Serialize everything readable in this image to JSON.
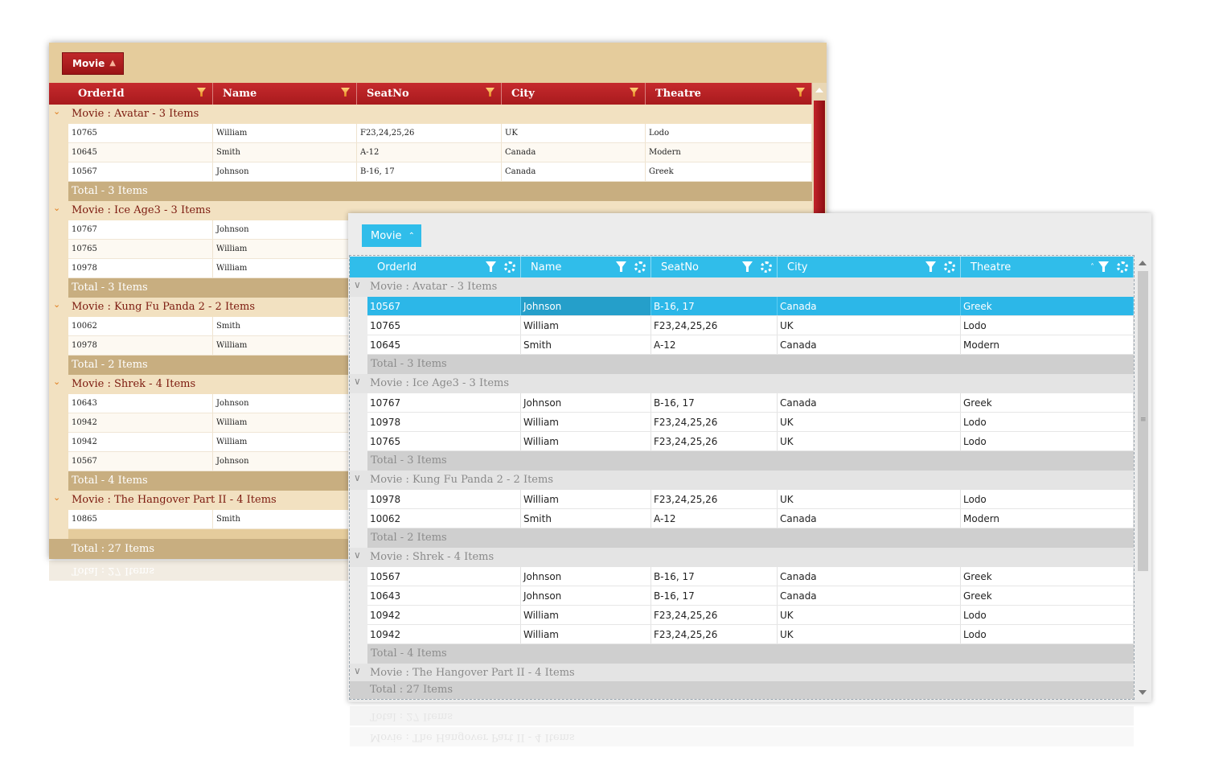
{
  "back_grid": {
    "group_chip": "Movie",
    "columns": [
      "OrderId",
      "Name",
      "SeatNo",
      "City",
      "Theatre"
    ],
    "groups": [
      {
        "label": "Movie : Avatar - 3 Items",
        "total": "Total - 3 Items",
        "rows": [
          [
            "10765",
            "William",
            "F23,24,25,26",
            "UK",
            "Lodo"
          ],
          [
            "10645",
            "Smith",
            "A-12",
            "Canada",
            "Modern"
          ],
          [
            "10567",
            "Johnson",
            "B-16, 17",
            "Canada",
            "Greek"
          ]
        ]
      },
      {
        "label": "Movie : Ice Age3 - 3 Items",
        "total": "Total - 3 Items",
        "rows": [
          [
            "10767",
            "Johnson",
            "",
            "",
            ""
          ],
          [
            "10765",
            "William",
            "",
            "",
            ""
          ],
          [
            "10978",
            "William",
            "",
            "",
            ""
          ]
        ]
      },
      {
        "label": "Movie : Kung Fu Panda 2 - 2 Items",
        "total": "Total - 2 Items",
        "rows": [
          [
            "10062",
            "Smith",
            "",
            "",
            ""
          ],
          [
            "10978",
            "William",
            "",
            "",
            ""
          ]
        ]
      },
      {
        "label": "Movie : Shrek - 4 Items",
        "total": "Total - 4 Items",
        "rows": [
          [
            "10643",
            "Johnson",
            "",
            "",
            ""
          ],
          [
            "10942",
            "William",
            "",
            "",
            ""
          ],
          [
            "10942",
            "William",
            "",
            "",
            ""
          ],
          [
            "10567",
            "Johnson",
            "",
            "",
            ""
          ]
        ]
      },
      {
        "label": "Movie : The Hangover Part II - 4 Items",
        "total": "",
        "rows": [
          [
            "10865",
            "Smith",
            "",
            "",
            ""
          ]
        ]
      }
    ],
    "grand_total": "Total : 27 Items"
  },
  "front_grid": {
    "group_chip": "Movie",
    "columns": [
      "OrderId",
      "Name",
      "SeatNo",
      "City",
      "Theatre"
    ],
    "selected_row": {
      "group": 0,
      "row": 0
    },
    "groups": [
      {
        "label": "Movie : Avatar - 3 Items",
        "total": "Total - 3 Items",
        "rows": [
          [
            "10567",
            "Johnson",
            "B-16, 17",
            "Canada",
            "Greek"
          ],
          [
            "10765",
            "William",
            "F23,24,25,26",
            "UK",
            "Lodo"
          ],
          [
            "10645",
            "Smith",
            "A-12",
            "Canada",
            "Modern"
          ]
        ]
      },
      {
        "label": "Movie : Ice Age3 - 3 Items",
        "total": "Total - 3 Items",
        "rows": [
          [
            "10767",
            "Johnson",
            "B-16, 17",
            "Canada",
            "Greek"
          ],
          [
            "10978",
            "William",
            "F23,24,25,26",
            "UK",
            "Lodo"
          ],
          [
            "10765",
            "William",
            "F23,24,25,26",
            "UK",
            "Lodo"
          ]
        ]
      },
      {
        "label": "Movie : Kung Fu Panda 2 - 2 Items",
        "total": "Total - 2 Items",
        "rows": [
          [
            "10978",
            "William",
            "F23,24,25,26",
            "UK",
            "Lodo"
          ],
          [
            "10062",
            "Smith",
            "A-12",
            "Canada",
            "Modern"
          ]
        ]
      },
      {
        "label": "Movie : Shrek - 4 Items",
        "total": "Total - 4 Items",
        "rows": [
          [
            "10567",
            "Johnson",
            "B-16, 17",
            "Canada",
            "Greek"
          ],
          [
            "10643",
            "Johnson",
            "B-16, 17",
            "Canada",
            "Greek"
          ],
          [
            "10942",
            "William",
            "F23,24,25,26",
            "UK",
            "Lodo"
          ],
          [
            "10942",
            "William",
            "F23,24,25,26",
            "UK",
            "Lodo"
          ]
        ]
      },
      {
        "label": "Movie : The Hangover Part II - 4 Items",
        "total": "",
        "rows": []
      }
    ],
    "grand_total": "Total : 27 Items"
  },
  "colors": {
    "back_header": "#c62a2d",
    "back_background": "#e5cc9c",
    "front_header": "#30bdea",
    "front_selection": "#2cb7e8"
  }
}
